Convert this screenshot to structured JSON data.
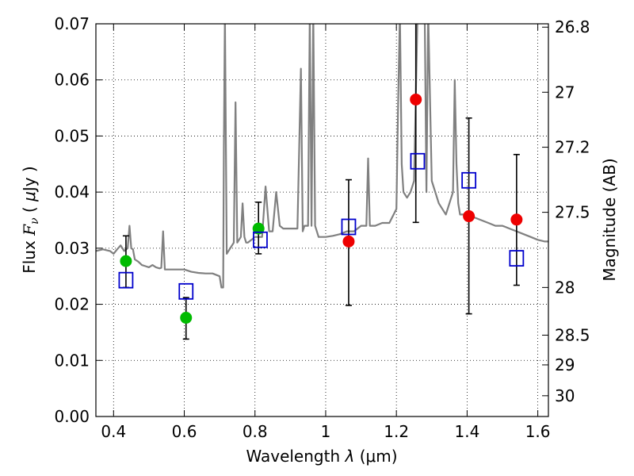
{
  "chart_data": {
    "type": "scatter",
    "xlabel": "Wavelength  λ (μm)",
    "ylabel": "Flux  F_ν  ( μJy )",
    "ylabel_parts": {
      "prefix": "Flux",
      "symbol_main": "F",
      "symbol_sub": "ν",
      "unit_open": "( ",
      "unit_mu": "μ",
      "unit_rest": "Jy )"
    },
    "xlabel_parts": {
      "prefix": "Wavelength",
      "symbol": "λ",
      "unit": "(μm)"
    },
    "y2label": "Magnitude (AB)",
    "xlim": [
      0.35,
      1.63
    ],
    "ylim": [
      0.0,
      0.07
    ],
    "grid": true,
    "x_ticks": [
      0.4,
      0.6,
      0.8,
      1.0,
      1.2,
      1.4,
      1.6
    ],
    "x_tick_labels": [
      "0.4",
      "0.6",
      "0.8",
      "1",
      "1.2",
      "1.4",
      "1.6"
    ],
    "y_ticks": [
      0.0,
      0.01,
      0.02,
      0.03,
      0.04,
      0.05,
      0.06,
      0.07
    ],
    "y_tick_labels": [
      "0.00",
      "0.01",
      "0.02",
      "0.03",
      "0.04",
      "0.05",
      "0.06",
      "0.07"
    ],
    "y2_ticks": [
      {
        "label": "26.8",
        "flux": 0.0694
      },
      {
        "label": "27",
        "flux": 0.0578
      },
      {
        "label": "27.2",
        "flux": 0.048
      },
      {
        "label": "27.5",
        "flux": 0.0364
      },
      {
        "label": "28",
        "flux": 0.023
      },
      {
        "label": "28.5",
        "flux": 0.0145
      },
      {
        "label": "29",
        "flux": 0.0092
      },
      {
        "label": "30",
        "flux": 0.0037
      }
    ],
    "series": [
      {
        "name": "model spectrum",
        "kind": "line",
        "color": "#808080",
        "x": [
          0.35,
          0.37,
          0.39,
          0.4,
          0.41,
          0.42,
          0.43,
          0.44,
          0.445,
          0.45,
          0.455,
          0.46,
          0.47,
          0.48,
          0.49,
          0.5,
          0.51,
          0.52,
          0.53,
          0.535,
          0.54,
          0.545,
          0.55,
          0.56,
          0.58,
          0.6,
          0.62,
          0.64,
          0.66,
          0.68,
          0.7,
          0.705,
          0.71,
          0.712,
          0.715,
          0.72,
          0.73,
          0.74,
          0.745,
          0.75,
          0.76,
          0.765,
          0.77,
          0.775,
          0.78,
          0.79,
          0.8,
          0.81,
          0.82,
          0.83,
          0.84,
          0.85,
          0.86,
          0.87,
          0.88,
          0.9,
          0.92,
          0.93,
          0.935,
          0.94,
          0.95,
          0.955,
          0.96,
          0.965,
          0.97,
          0.98,
          1.0,
          1.02,
          1.04,
          1.06,
          1.08,
          1.1,
          1.115,
          1.12,
          1.125,
          1.14,
          1.16,
          1.18,
          1.2,
          1.205,
          1.21,
          1.215,
          1.22,
          1.23,
          1.24,
          1.25,
          1.26,
          1.27,
          1.28,
          1.285,
          1.29,
          1.3,
          1.32,
          1.34,
          1.36,
          1.365,
          1.37,
          1.375,
          1.38,
          1.4,
          1.42,
          1.44,
          1.46,
          1.48,
          1.5,
          1.52,
          1.54,
          1.56,
          1.58,
          1.6,
          1.62,
          1.63
        ],
        "y": [
          0.0295,
          0.0298,
          0.0295,
          0.029,
          0.0298,
          0.0305,
          0.0295,
          0.03,
          0.034,
          0.03,
          0.0298,
          0.028,
          0.0276,
          0.027,
          0.0268,
          0.0266,
          0.027,
          0.0266,
          0.0264,
          0.0265,
          0.033,
          0.0262,
          0.0262,
          0.0262,
          0.0262,
          0.0262,
          0.0258,
          0.0256,
          0.0255,
          0.0255,
          0.025,
          0.023,
          0.023,
          0.048,
          0.072,
          0.029,
          0.03,
          0.031,
          0.056,
          0.031,
          0.032,
          0.038,
          0.032,
          0.031,
          0.031,
          0.0315,
          0.032,
          0.032,
          0.032,
          0.041,
          0.033,
          0.033,
          0.04,
          0.034,
          0.0335,
          0.0335,
          0.0335,
          0.062,
          0.033,
          0.034,
          0.034,
          0.072,
          0.034,
          0.072,
          0.034,
          0.032,
          0.032,
          0.0322,
          0.0325,
          0.033,
          0.033,
          0.034,
          0.034,
          0.046,
          0.034,
          0.034,
          0.0345,
          0.0345,
          0.037,
          0.056,
          0.072,
          0.045,
          0.04,
          0.039,
          0.04,
          0.042,
          0.072,
          0.072,
          0.072,
          0.04,
          0.072,
          0.042,
          0.038,
          0.036,
          0.04,
          0.06,
          0.045,
          0.038,
          0.036,
          0.036,
          0.0355,
          0.035,
          0.0345,
          0.034,
          0.034,
          0.0335,
          0.033,
          0.0325,
          0.032,
          0.0315,
          0.0312,
          0.0312
        ]
      },
      {
        "name": "photometry (green)",
        "kind": "points",
        "marker": "circle",
        "color": "#00bb00",
        "x": [
          0.435,
          0.605,
          0.81
        ],
        "y": [
          0.0277,
          0.0176,
          0.0335
        ],
        "err_low": [
          0.023,
          0.0138,
          0.029
        ],
        "err_high": [
          0.0322,
          0.0212,
          0.0382
        ]
      },
      {
        "name": "photometry (red)",
        "kind": "points",
        "marker": "circle",
        "color": "#ee0000",
        "x": [
          1.065,
          1.255,
          1.405,
          1.54
        ],
        "y": [
          0.0312,
          0.0565,
          0.0357,
          0.0351
        ],
        "err_low": [
          0.0198,
          0.0346,
          0.0183,
          0.0234
        ],
        "err_high": [
          0.0422,
          0.071,
          0.0532,
          0.0467
        ]
      },
      {
        "name": "model photometry",
        "kind": "points",
        "marker": "square",
        "color": "#0000cc",
        "x": [
          0.435,
          0.605,
          0.815,
          1.065,
          1.26,
          1.405,
          1.54
        ],
        "y": [
          0.0243,
          0.0223,
          0.0315,
          0.0338,
          0.0455,
          0.0421,
          0.0282
        ]
      }
    ]
  }
}
